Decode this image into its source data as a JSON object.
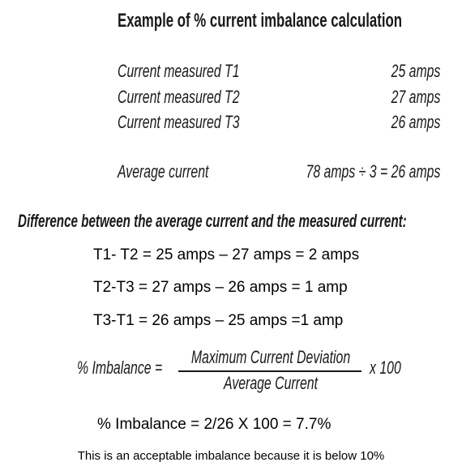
{
  "title": "Example of % current imbalance calculation",
  "measurements": [
    {
      "label": "Current measured T1",
      "value": "25 amps"
    },
    {
      "label": "Current measured T2",
      "value": "27 amps"
    },
    {
      "label": "Current measured T3",
      "value": "26 amps"
    }
  ],
  "average": {
    "label": "Average current",
    "value": "78 amps ÷ 3 = 26 amps"
  },
  "difference_heading": "Difference between the average current and the measured current:",
  "differences": [
    "T1- T2 = 25 amps – 27 amps = 2 amps",
    "T2-T3 = 27 amps – 26 amps = 1 amp",
    "T3-T1 = 26 amps – 25 amps =1 amp"
  ],
  "formula": {
    "lhs": "% Imbalance =",
    "numerator": "Maximum Current Deviation",
    "denominator": "Average Current",
    "multiplier": "x 100"
  },
  "result": "% Imbalance = 2/26 X 100 = 7.7%",
  "note": "This is an acceptable imbalance because it is below 10%"
}
